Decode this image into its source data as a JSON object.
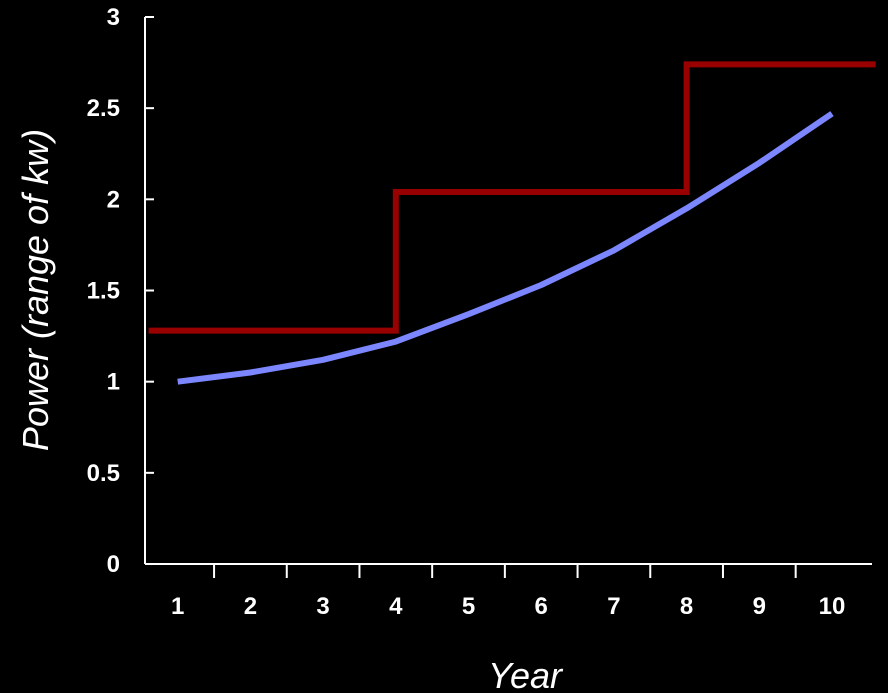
{
  "chart_data": {
    "type": "line",
    "title": "",
    "xlabel": "Year",
    "ylabel": "Power (range of kw)",
    "xlim": [
      0.55,
      10.55
    ],
    "ylim": [
      0,
      3
    ],
    "x_ticks": [
      1,
      2,
      3,
      4,
      5,
      6,
      7,
      8,
      9,
      10
    ],
    "y_ticks": [
      0,
      0.5,
      1,
      1.5,
      2,
      2.5,
      3
    ],
    "y_tick_labels": [
      "0",
      "0.5",
      "1",
      "1.5",
      "2",
      "2.5",
      "3"
    ],
    "grid": false,
    "series": [
      {
        "style": "step",
        "color": "#990000",
        "x": [
          0.6,
          4.0,
          4.0,
          8.0,
          8.0,
          10.6
        ],
        "y": [
          1.28,
          1.28,
          2.04,
          2.04,
          2.74,
          2.74
        ]
      },
      {
        "style": "line",
        "color": "#7b86ff",
        "x": [
          1,
          2,
          3,
          4,
          5,
          6,
          7,
          8,
          9,
          10
        ],
        "y": [
          1.0,
          1.05,
          1.12,
          1.22,
          1.37,
          1.53,
          1.72,
          1.95,
          2.2,
          2.47
        ]
      }
    ]
  }
}
